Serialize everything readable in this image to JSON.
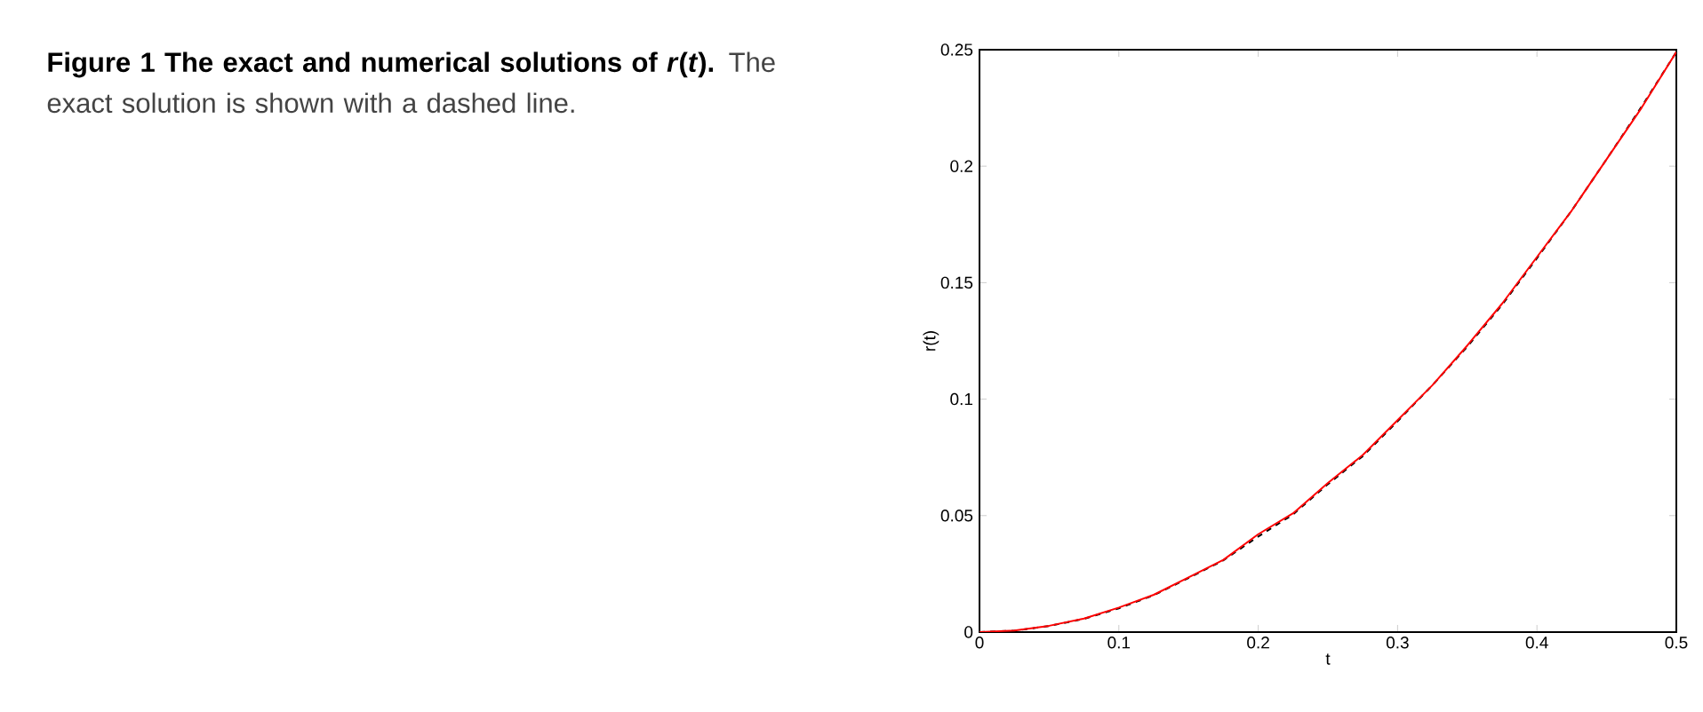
{
  "chart_data": {
    "type": "line",
    "title": "Figure 1  The exact and numerical solutions of *r*(*t*).",
    "annotations": [
      "The exact solution is shown with a dashed line."
    ],
    "xlabel": "t",
    "ylabel": "r(t)",
    "x": [
      0,
      0.025,
      0.05,
      0.075,
      0.1,
      0.125,
      0.15,
      0.175,
      0.2,
      0.225,
      0.25,
      0.275,
      0.3,
      0.325,
      0.35,
      0.375,
      0.4,
      0.425,
      0.45,
      0.475,
      0.5
    ],
    "series": [
      {
        "color": "#000000",
        "line_style": "dashed",
        "values": [
          0,
          0.0006,
          0.0026,
          0.0057,
          0.0102,
          0.0158,
          0.0232,
          0.0308,
          0.041,
          0.0505,
          0.0635,
          0.0755,
          0.0905,
          0.106,
          0.1225,
          0.1405,
          0.1605,
          0.181,
          0.203,
          0.2255,
          0.249
        ]
      },
      {
        "color": "#ff0000",
        "line_style": "solid",
        "values": [
          0,
          0.0007,
          0.0027,
          0.0058,
          0.0105,
          0.016,
          0.0235,
          0.031,
          0.042,
          0.051,
          0.064,
          0.076,
          0.091,
          0.106,
          0.123,
          0.141,
          0.161,
          0.181,
          0.203,
          0.225,
          0.249
        ]
      }
    ],
    "xlim": [
      0,
      0.5
    ],
    "ylim": [
      0,
      0.25
    ],
    "xticks": [
      0,
      0.1,
      0.2,
      0.3,
      0.4,
      0.5
    ],
    "yticks": [
      0,
      0.05,
      0.1,
      0.15,
      0.2,
      0.25
    ]
  }
}
